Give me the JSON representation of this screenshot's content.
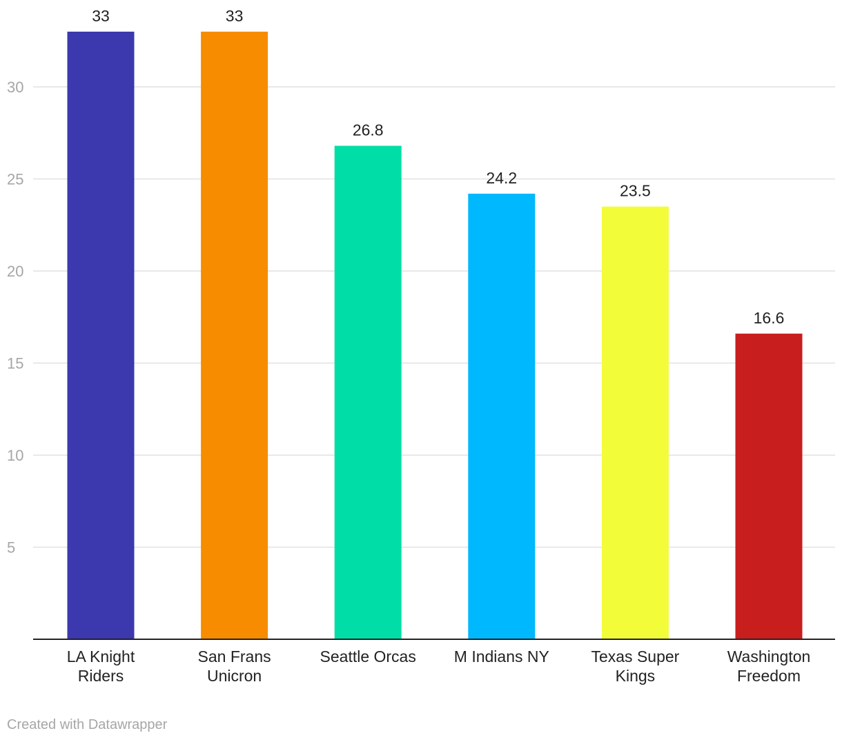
{
  "chart_data": {
    "type": "bar",
    "categories": [
      [
        "LA Knight",
        "Riders"
      ],
      [
        "San Frans",
        "Unicron"
      ],
      [
        "Seattle Orcas"
      ],
      [
        "M Indians NY"
      ],
      [
        "Texas Super",
        "Kings"
      ],
      [
        "Washington",
        "Freedom"
      ]
    ],
    "values": [
      33,
      33,
      26.8,
      24.2,
      23.5,
      16.6
    ],
    "value_labels": [
      "33",
      "33",
      "26.8",
      "24.2",
      "23.5",
      "16.6"
    ],
    "colors": [
      "#3c38ae",
      "#f78c00",
      "#00dda6",
      "#00b8fe",
      "#f3fc39",
      "#c91e1e"
    ],
    "ylim": [
      0,
      33
    ],
    "yticks": [
      5,
      10,
      15,
      20,
      25,
      30
    ],
    "title": "",
    "xlabel": "",
    "ylabel": "",
    "grid": true
  },
  "footer": {
    "credit": "Created with Datawrapper"
  }
}
